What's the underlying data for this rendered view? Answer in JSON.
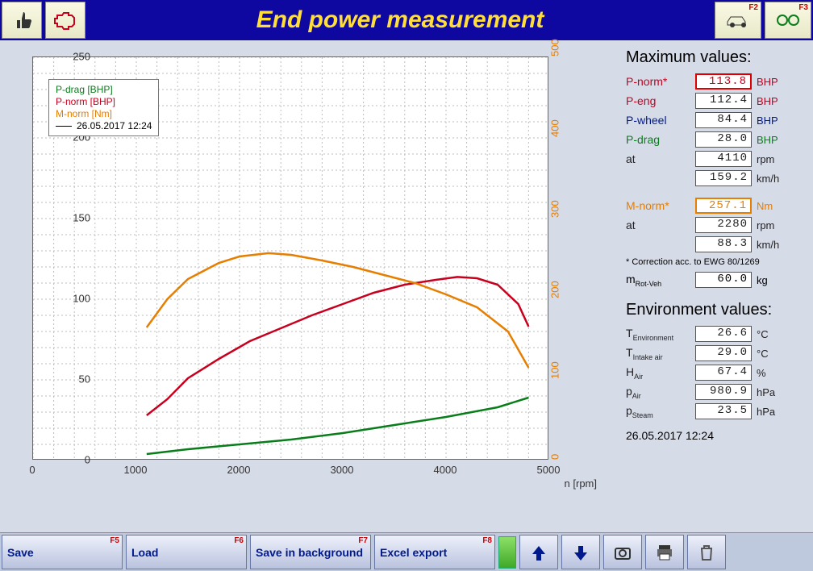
{
  "header": {
    "title": "End power measurement",
    "left_icons": [
      "thumbs-up-icon",
      "engine-icon"
    ],
    "right_buttons": [
      {
        "fkey": "F2",
        "icon": "car-icon"
      },
      {
        "fkey": "F3",
        "icon": "gears-icon"
      }
    ]
  },
  "chart": {
    "type": "line",
    "xlabel": "n [rpm]",
    "xlim": [
      0,
      5000
    ],
    "xtick_step": 1000,
    "ylim": [
      0,
      250
    ],
    "ytick_step": 50,
    "y2lim": [
      0,
      500
    ],
    "y2tick_step": 100,
    "grid_color": "#bebebe",
    "background_color": "#ffffff",
    "series": [
      {
        "name": "P-drag [BHP]",
        "color": "#0a7d1b",
        "x": [
          1100,
          1500,
          2000,
          2500,
          3000,
          3500,
          4000,
          4500,
          4800
        ],
        "y": [
          4,
          7,
          10,
          13,
          17,
          22,
          27,
          33,
          39
        ]
      },
      {
        "name": "P-norm [BHP]",
        "color": "#c7001e",
        "x": [
          1100,
          1300,
          1500,
          1800,
          2100,
          2400,
          2700,
          3000,
          3300,
          3600,
          3900,
          4110,
          4300,
          4500,
          4700,
          4800
        ],
        "y": [
          28,
          38,
          51,
          63,
          74,
          82,
          90,
          97,
          104,
          109,
          112,
          113.8,
          113,
          109,
          97,
          83
        ]
      },
      {
        "name": "M-norm [Nm]",
        "color": "#e67e00",
        "axis": "y2",
        "x": [
          1100,
          1300,
          1500,
          1800,
          2000,
          2280,
          2500,
          2800,
          3100,
          3400,
          3700,
          4000,
          4300,
          4600,
          4800
        ],
        "y": [
          165,
          200,
          225,
          245,
          253,
          257.1,
          255,
          248,
          240,
          230,
          220,
          206,
          190,
          160,
          115
        ]
      }
    ],
    "legend_timestamp": "26.05.2017 12:24"
  },
  "max_values": {
    "title": "Maximum values:",
    "rows": [
      {
        "label": "P-norm*",
        "value": "113.8",
        "unit": "BHP",
        "color": "#c7001e",
        "highlight": "red"
      },
      {
        "label": "P-eng",
        "value": "112.4",
        "unit": "BHP",
        "color": "#c7001e"
      },
      {
        "label": "P-wheel",
        "value": "84.4",
        "unit": "BHP",
        "color": "#001a8d"
      },
      {
        "label": "P-drag",
        "value": "28.0",
        "unit": "BHP",
        "color": "#0a7d1b"
      },
      {
        "label": "at",
        "value": "4110",
        "unit": "rpm",
        "color": "#222"
      },
      {
        "label": "",
        "value": "159.2",
        "unit": "km/h",
        "color": "#222"
      },
      {
        "spacer": true
      },
      {
        "label": "M-norm*",
        "value": "257.1",
        "unit": "Nm",
        "color": "#e67e00",
        "highlight": "orange"
      },
      {
        "label": "at",
        "value": "2280",
        "unit": "rpm",
        "color": "#222"
      },
      {
        "label": "",
        "value": "88.3",
        "unit": "km/h",
        "color": "#222"
      }
    ],
    "footnote": "* Correction acc. to EWG 80/1269",
    "mrot": {
      "label": "m",
      "sub": "Rot-Veh",
      "value": "60.0",
      "unit": "kg"
    }
  },
  "env_values": {
    "title": "Environment values:",
    "rows": [
      {
        "label": "T",
        "sub": "Environment",
        "value": "26.6",
        "unit": "°C"
      },
      {
        "label": "T",
        "sub": "Intake air",
        "value": "29.0",
        "unit": "°C"
      },
      {
        "label": "H",
        "sub": "Air",
        "value": "67.4",
        "unit": "%"
      },
      {
        "label": "p",
        "sub": "Air",
        "value": "980.9",
        "unit": "hPa"
      },
      {
        "label": "p",
        "sub": "Steam",
        "value": "23.5",
        "unit": "hPa"
      }
    ]
  },
  "timestamp": "26.05.2017  12:24",
  "footer": [
    {
      "label": "Save",
      "fkey": "F5",
      "wide": true
    },
    {
      "label": "Load",
      "fkey": "F6",
      "wide": true
    },
    {
      "label": "Save in background",
      "fkey": "F7",
      "wide": true
    },
    {
      "label": "Excel export",
      "fkey": "F8",
      "wide": true
    },
    {
      "type": "green"
    },
    {
      "icon": "arrow-up-icon"
    },
    {
      "icon": "arrow-down-icon"
    },
    {
      "icon": "camera-icon"
    },
    {
      "icon": "printer-icon"
    },
    {
      "icon": "trash-icon"
    }
  ]
}
